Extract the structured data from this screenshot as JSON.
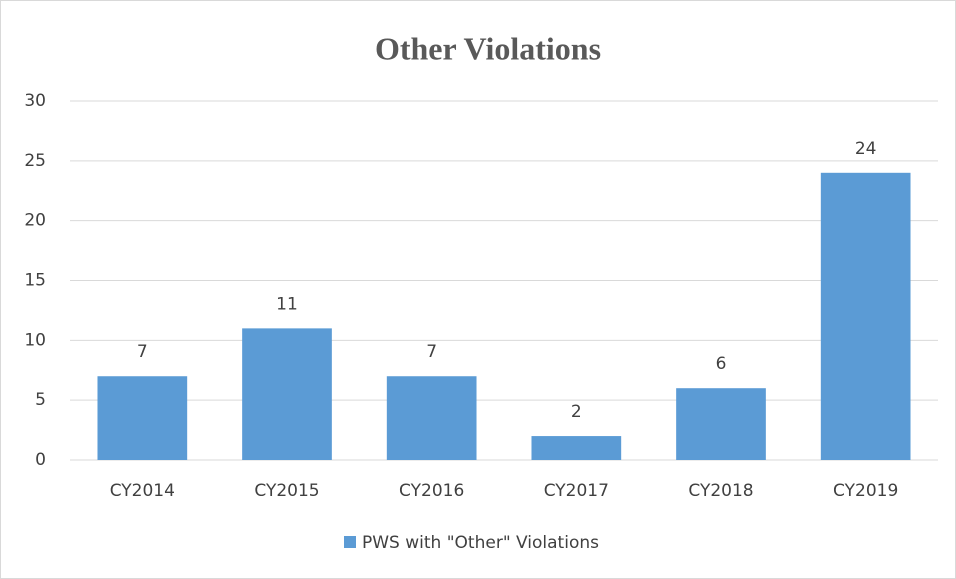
{
  "chart_data": {
    "type": "bar",
    "title": "Other Violations",
    "categories": [
      "CY2014",
      "CY2015",
      "CY2016",
      "CY2017",
      "CY2018",
      "CY2019"
    ],
    "series": [
      {
        "name": "PWS with \"Other\" Violations",
        "color": "#5b9bd5",
        "values": [
          7,
          11,
          7,
          2,
          6,
          24
        ]
      }
    ],
    "ylim": [
      0,
      30
    ],
    "yticks": [
      0,
      5,
      10,
      15,
      20,
      25,
      30
    ],
    "grid": true,
    "legend": "bottom"
  }
}
